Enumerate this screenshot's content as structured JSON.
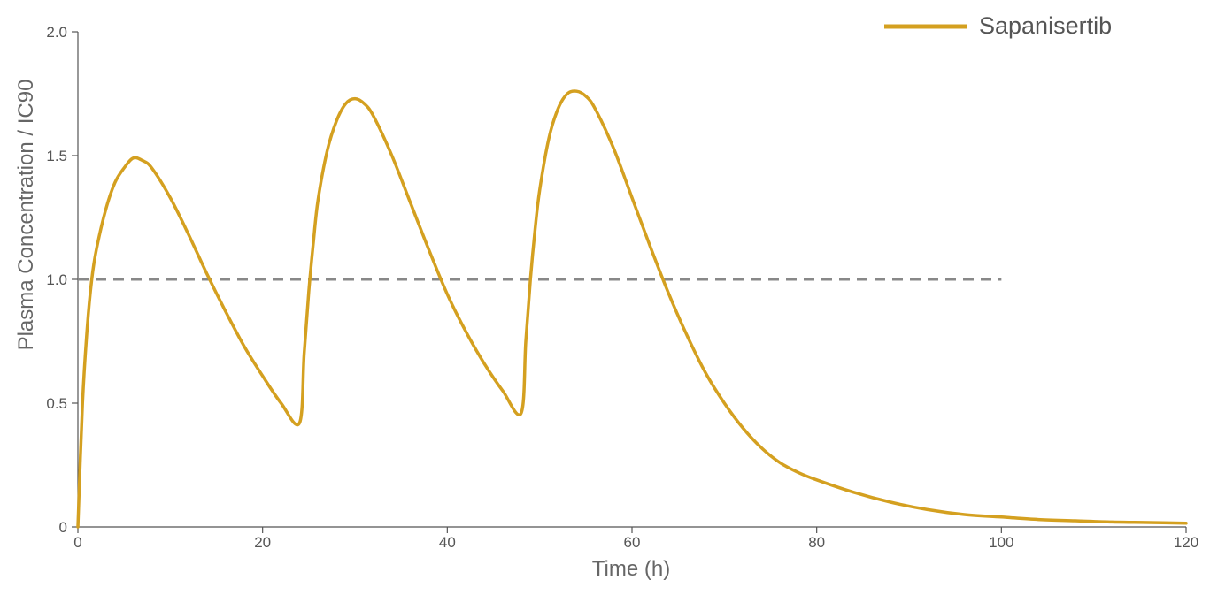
{
  "chart_data": {
    "type": "line",
    "xlabel": "Time (h)",
    "ylabel": "Plasma Concentration / IC90",
    "xlim": [
      0,
      120
    ],
    "ylim": [
      0,
      2.0
    ],
    "xticks": [
      0,
      20,
      40,
      60,
      80,
      100,
      120
    ],
    "xtick_labels": [
      "0",
      "20",
      "40",
      "60",
      "80",
      "100",
      "120"
    ],
    "yticks": [
      0,
      0.5,
      1.0,
      1.5,
      2.0
    ],
    "ytick_labels": [
      "0",
      "0.5",
      "1.0",
      "1.5",
      "2.0"
    ],
    "grid": false,
    "legend_position": "top-right",
    "series": [
      {
        "name": "Sapanisertib",
        "color": "#D4A020",
        "x": [
          0,
          0.5,
          1,
          1.5,
          2,
          3,
          4,
          5,
          6,
          7,
          8,
          10,
          12,
          14,
          16,
          18,
          20,
          22,
          24,
          24.5,
          25,
          25.5,
          26,
          27,
          28,
          29,
          30,
          31,
          32,
          34,
          36,
          38,
          40,
          42,
          44,
          46,
          48,
          48.5,
          49,
          49.5,
          50,
          51,
          52,
          53,
          54,
          55,
          56,
          58,
          60,
          62,
          64,
          66,
          68,
          70,
          72,
          74,
          76,
          78,
          80,
          84,
          88,
          92,
          96,
          100,
          104,
          108,
          112,
          116,
          120
        ],
        "y": [
          0.0,
          0.5,
          0.8,
          1.0,
          1.12,
          1.28,
          1.39,
          1.45,
          1.49,
          1.48,
          1.45,
          1.33,
          1.18,
          1.02,
          0.87,
          0.73,
          0.61,
          0.5,
          0.42,
          0.7,
          0.95,
          1.15,
          1.32,
          1.52,
          1.64,
          1.71,
          1.73,
          1.71,
          1.66,
          1.5,
          1.31,
          1.12,
          0.94,
          0.79,
          0.66,
          0.55,
          0.46,
          0.75,
          1.0,
          1.2,
          1.36,
          1.57,
          1.69,
          1.75,
          1.76,
          1.74,
          1.69,
          1.53,
          1.33,
          1.13,
          0.94,
          0.77,
          0.62,
          0.5,
          0.4,
          0.32,
          0.26,
          0.22,
          0.19,
          0.14,
          0.1,
          0.07,
          0.05,
          0.04,
          0.03,
          0.025,
          0.02,
          0.018,
          0.015
        ]
      }
    ],
    "threshold": {
      "y": 1.0,
      "x": [
        0,
        100
      ],
      "color": "#888888",
      "style": "dashed"
    }
  },
  "legend": {
    "label": "Sapanisertib",
    "color": "#D4A020"
  }
}
